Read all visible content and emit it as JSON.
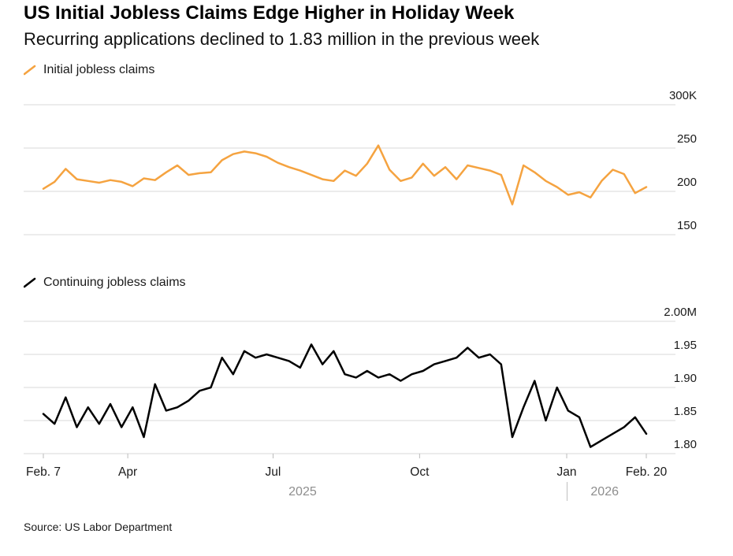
{
  "header": {
    "title": "US Initial Jobless Claims Edge Higher in Holiday Week",
    "subtitle": "Recurring applications declined to 1.83 million in the previous week"
  },
  "source": "Source: US Labor Department",
  "colors": {
    "grid": "#D9D9D9",
    "tick": "#BBBBBB",
    "label": "#1A1A1A",
    "year": "#8E8E8E",
    "divider": "#C0C0C0"
  },
  "x_axis": {
    "ticks": [
      {
        "label": "Feb. 7",
        "pos": 0.0
      },
      {
        "label": "Apr",
        "pos": 0.14
      },
      {
        "label": "Jul",
        "pos": 0.381
      },
      {
        "label": "Oct",
        "pos": 0.624
      },
      {
        "label": "Jan",
        "pos": 0.868
      },
      {
        "label": "Feb. 20",
        "pos": 1.0
      }
    ],
    "years": [
      {
        "label": "2025",
        "pos": 0.43
      },
      {
        "label": "2026",
        "pos": 0.931
      }
    ],
    "year_divider_pos": 0.868
  },
  "chart_data": [
    {
      "type": "line",
      "name": "initial-jobless-claims",
      "legend": "Initial jobless claims",
      "color": "#F5A340",
      "unit": "thousands of claims",
      "x_range": [
        "Feb. 7 2025",
        "Feb. 20 2026"
      ],
      "ylim": [
        150,
        300
      ],
      "gridlines": [
        {
          "value": 300,
          "label": "300K"
        },
        {
          "value": 250,
          "label": "250"
        },
        {
          "value": 200,
          "label": "200"
        },
        {
          "value": 150,
          "label": "150"
        }
      ],
      "values": [
        203,
        211,
        226,
        214,
        212,
        210,
        213,
        211,
        206,
        215,
        213,
        222,
        230,
        219,
        221,
        222,
        236,
        243,
        246,
        244,
        240,
        233,
        228,
        224,
        219,
        214,
        212,
        224,
        218,
        232,
        253,
        225,
        212,
        216,
        232,
        218,
        228,
        214,
        230,
        227,
        224,
        219,
        185,
        230,
        222,
        212,
        205,
        196,
        199,
        193,
        212,
        225,
        220,
        198,
        205
      ]
    },
    {
      "type": "line",
      "name": "continuing-jobless-claims",
      "legend": "Continuing jobless claims",
      "color": "#000000",
      "unit": "millions of claims",
      "x_range": [
        "Feb. 7 2025",
        "Feb. 20 2026"
      ],
      "ylim": [
        1.8,
        2.0
      ],
      "gridlines": [
        {
          "value": 2.0,
          "label": "2.00M"
        },
        {
          "value": 1.95,
          "label": "1.95"
        },
        {
          "value": 1.9,
          "label": "1.90"
        },
        {
          "value": 1.85,
          "label": "1.85"
        },
        {
          "value": 1.8,
          "label": "1.80"
        }
      ],
      "values": [
        1.86,
        1.845,
        1.885,
        1.84,
        1.87,
        1.845,
        1.875,
        1.84,
        1.87,
        1.825,
        1.905,
        1.865,
        1.87,
        1.88,
        1.895,
        1.9,
        1.945,
        1.92,
        1.955,
        1.945,
        1.95,
        1.945,
        1.94,
        1.93,
        1.965,
        1.935,
        1.955,
        1.92,
        1.915,
        1.925,
        1.915,
        1.92,
        1.91,
        1.92,
        1.925,
        1.935,
        1.94,
        1.945,
        1.96,
        1.945,
        1.95,
        1.935,
        1.825,
        1.87,
        1.91,
        1.85,
        1.9,
        1.865,
        1.855,
        1.81,
        1.82,
        1.83,
        1.84,
        1.855,
        1.83
      ]
    }
  ]
}
